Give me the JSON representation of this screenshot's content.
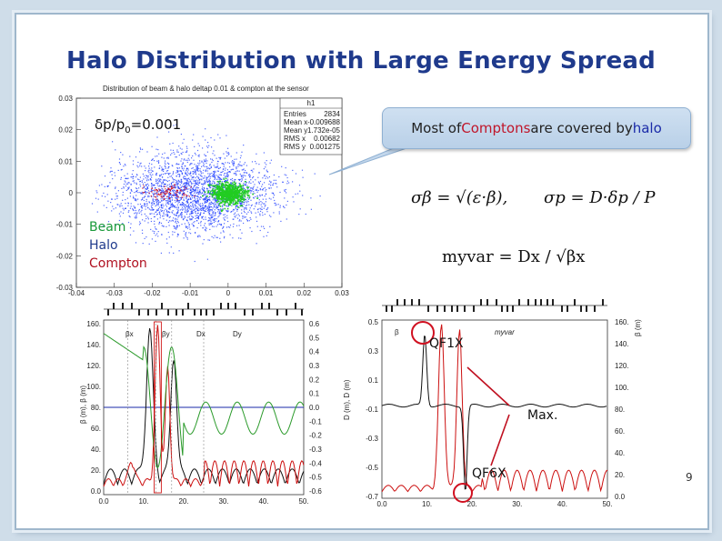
{
  "slide": {
    "title": "Halo Distribution with Large Energy Spread",
    "page_number": "9"
  },
  "scatter": {
    "title": "Distribution of beam & halo  deltap  0.01 & compton at the sensor",
    "dp_label_prefix": "δp/p",
    "dp_label_sub": "0",
    "dp_label_value": "=0.001",
    "stats": {
      "name": "h1",
      "rows": [
        {
          "k": "Entries",
          "v": "2834"
        },
        {
          "k": "Mean x",
          "v": "-0.009688"
        },
        {
          "k": "Mean y",
          "v": "1.732e-05"
        },
        {
          "k": "RMS x",
          "v": "0.00682"
        },
        {
          "k": "RMS y",
          "v": "0.001275"
        }
      ]
    },
    "xticks": [
      "-0.04",
      "-0.03",
      "-0.02",
      "-0.01",
      "0",
      "0.01",
      "0.02",
      "0.03"
    ],
    "yticks": [
      "0.03",
      "0.02",
      "0.01",
      "0",
      "-0.01",
      "-0.02",
      "-0.03"
    ],
    "legend": {
      "beam": "Beam",
      "halo": "Halo",
      "compton": "Compton"
    },
    "colors": {
      "beam": "#22cc22",
      "halo": "#1a3aff",
      "compton": "#d01020"
    }
  },
  "callout": {
    "pre": "Most of ",
    "red_word": "Comptons",
    "mid": " are covered by ",
    "blue_word": "halo"
  },
  "formulas": {
    "sigma_beta": "σβ = √(ε·β),",
    "sigma_p": "σp = D·δp / P",
    "myvar": "myvar = Dx / √βx"
  },
  "left_plot": {
    "y_left_label": "β (m), β (m)",
    "y_left_ticks": [
      "160.",
      "140.",
      "120.",
      "100.",
      "80.",
      "60.",
      "40.",
      "20.",
      "0.0"
    ],
    "y_right_ticks": [
      "0.6",
      "0.5",
      "0.4",
      "0.3",
      "0.2",
      "0.1",
      "0.0",
      "-0.1",
      "-0.2",
      "-0.3",
      "-0.4",
      "-0.5",
      "-0.6"
    ],
    "x_ticks": [
      "0.0",
      "10.",
      "20.",
      "30.",
      "40.",
      "50."
    ],
    "legend": [
      "βx",
      "βy",
      "Dx",
      "Dy"
    ]
  },
  "right_plot": {
    "y_left_label": "D (m), D (m)",
    "y_left_ticks": [
      "0.5",
      "0.3",
      "0.1",
      "-0.1",
      "-0.3",
      "-0.5",
      "-0.7"
    ],
    "y_right_label": "β (m)",
    "y_right_ticks": [
      "160.",
      "140.",
      "120.",
      "100.",
      "80.",
      "60.",
      "40.",
      "20.",
      "0.0"
    ],
    "x_ticks": [
      "0.0",
      "10.",
      "20.",
      "30.",
      "40.",
      "50."
    ],
    "legend": [
      "β",
      "myvar"
    ]
  },
  "annotations": {
    "qf1x": "QF1X",
    "max": "Max.",
    "qf6x": "QF6X"
  }
}
